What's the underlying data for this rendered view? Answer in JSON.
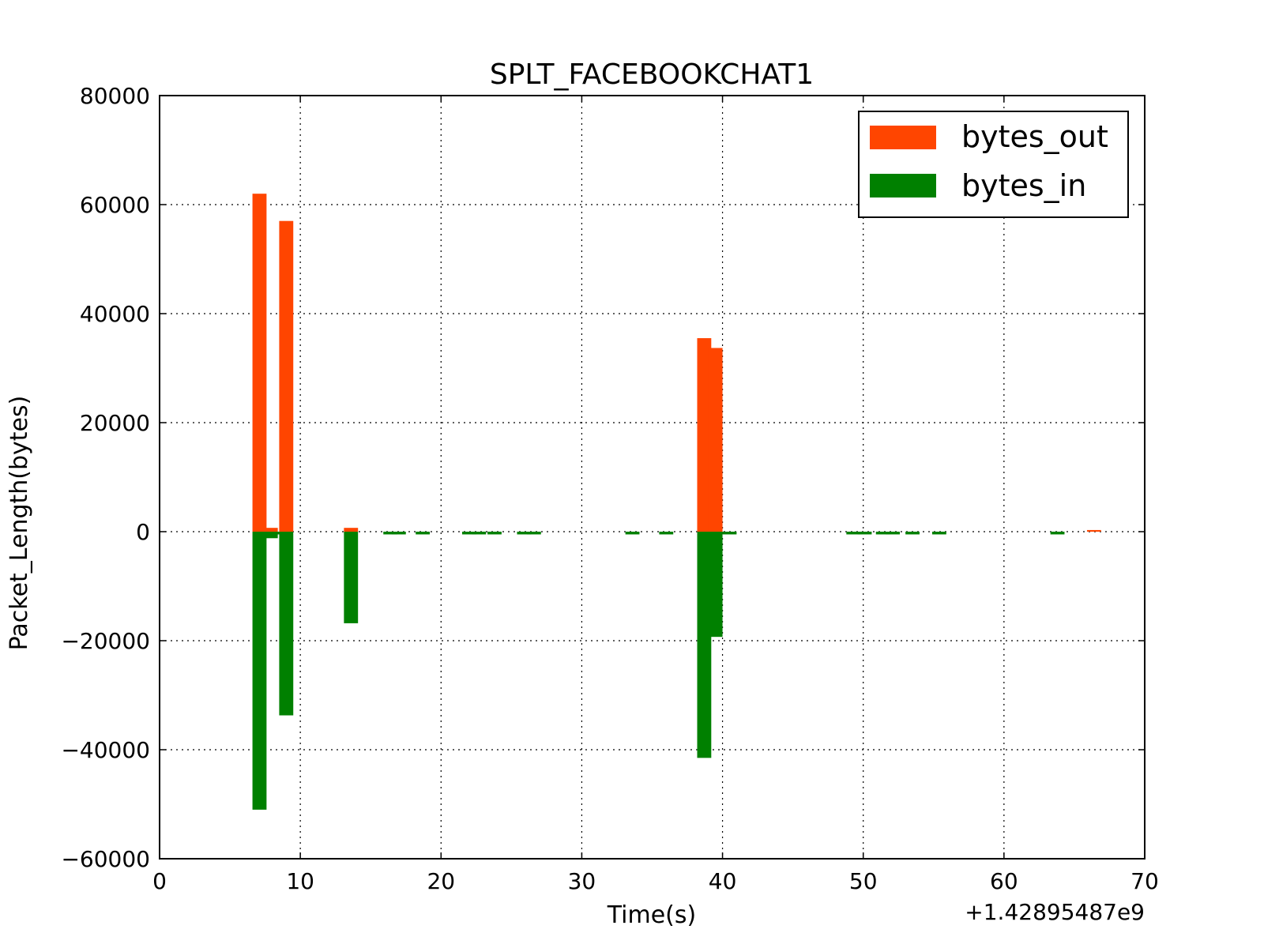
{
  "chart_data": {
    "type": "bar",
    "title": "SPLT_FACEBOOKCHAT1",
    "xlabel": "Time(s)",
    "ylabel": "Packet_Length(bytes)",
    "x_offset_label": "+1.42895487e9",
    "xlim": [
      0,
      70
    ],
    "ylim": [
      -60000,
      80000
    ],
    "xticks": [
      0,
      10,
      20,
      30,
      40,
      50,
      60,
      70
    ],
    "yticks": [
      -60000,
      -40000,
      -20000,
      0,
      20000,
      40000,
      60000,
      80000
    ],
    "xtick_labels": [
      "0",
      "10",
      "20",
      "30",
      "40",
      "50",
      "60",
      "70"
    ],
    "ytick_labels": [
      "−60000",
      "−40000",
      "−20000",
      "0",
      "20000",
      "40000",
      "60000",
      "80000"
    ],
    "grid": true,
    "legend_position": "top-right",
    "bar_width": 1,
    "series": [
      {
        "name": "bytes_out",
        "color": "#ff4500",
        "points": [
          {
            "x": 6.6,
            "y": 62000
          },
          {
            "x": 7.4,
            "y": 700
          },
          {
            "x": 8.5,
            "y": 57000
          },
          {
            "x": 13.1,
            "y": 700
          },
          {
            "x": 38.2,
            "y": 35500
          },
          {
            "x": 39.0,
            "y": 33700
          },
          {
            "x": 65.9,
            "y": 300
          }
        ]
      },
      {
        "name": "bytes_in",
        "color": "#008000",
        "points": [
          {
            "x": 6.6,
            "y": -51000
          },
          {
            "x": 7.4,
            "y": -1200
          },
          {
            "x": 8.0,
            "y": -500
          },
          {
            "x": 8.5,
            "y": -33700
          },
          {
            "x": 13.1,
            "y": -16800
          },
          {
            "x": 15.9,
            "y": -500
          },
          {
            "x": 16.5,
            "y": -500
          },
          {
            "x": 18.2,
            "y": -500
          },
          {
            "x": 21.5,
            "y": -500
          },
          {
            "x": 22.2,
            "y": -500
          },
          {
            "x": 23.3,
            "y": -500
          },
          {
            "x": 25.4,
            "y": -500
          },
          {
            "x": 26.1,
            "y": -500
          },
          {
            "x": 33.1,
            "y": -500
          },
          {
            "x": 35.5,
            "y": -500
          },
          {
            "x": 38.2,
            "y": -41500
          },
          {
            "x": 39.0,
            "y": -19300
          },
          {
            "x": 40.0,
            "y": -500
          },
          {
            "x": 48.8,
            "y": -500
          },
          {
            "x": 49.6,
            "y": -500
          },
          {
            "x": 50.9,
            "y": -500
          },
          {
            "x": 51.6,
            "y": -500
          },
          {
            "x": 53.0,
            "y": -500
          },
          {
            "x": 54.9,
            "y": -500
          },
          {
            "x": 63.3,
            "y": -500
          }
        ]
      }
    ]
  }
}
